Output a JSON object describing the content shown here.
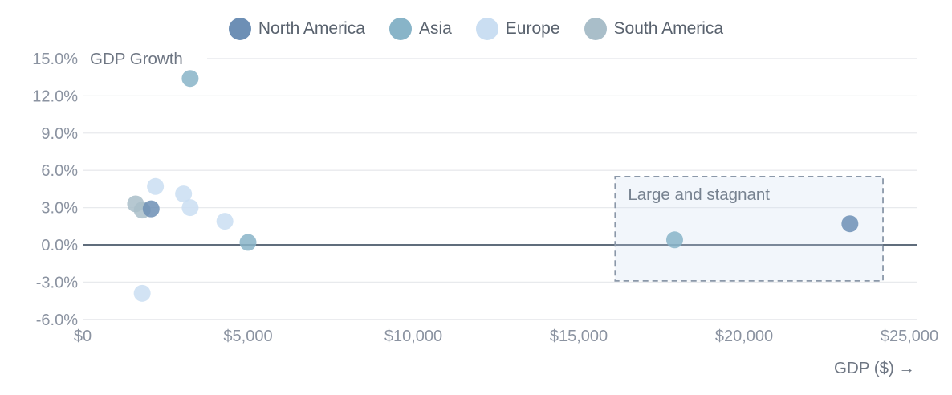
{
  "legend": {
    "items": [
      {
        "label": "North America",
        "color": "#6d8fb5"
      },
      {
        "label": "Asia",
        "color": "#88b4c8"
      },
      {
        "label": "Europe",
        "color": "#cadef2"
      },
      {
        "label": "South America",
        "color": "#a9bec9"
      }
    ]
  },
  "chart_data": {
    "type": "scatter",
    "title": "GDP Growth",
    "xlabel": "GDP ($) →",
    "x_axis": {
      "ticks": [
        {
          "value": 0,
          "label": "$0"
        },
        {
          "value": 5000,
          "label": "$5,000"
        },
        {
          "value": 10000,
          "label": "$10,000"
        },
        {
          "value": 15000,
          "label": "$15,000"
        },
        {
          "value": 20000,
          "label": "$20,000"
        },
        {
          "value": 25000,
          "label": "$25,000"
        }
      ]
    },
    "y_axis": {
      "ticks": [
        {
          "value": 15,
          "label": "15.0%"
        },
        {
          "value": 12,
          "label": "12.0%"
        },
        {
          "value": 9,
          "label": "9.0%"
        },
        {
          "value": 6,
          "label": "6.0%"
        },
        {
          "value": 3,
          "label": "3.0%"
        },
        {
          "value": 0,
          "label": "0.0%"
        },
        {
          "value": -3,
          "label": "-3.0%"
        },
        {
          "value": -6,
          "label": "-6.0%"
        }
      ]
    },
    "xlim": [
      0,
      25500
    ],
    "ylim": [
      -6.5,
      15
    ],
    "grid": "horizontal",
    "legend_position": "top",
    "series": [
      {
        "name": "North America",
        "color": "#6d8fb5",
        "points": [
          {
            "gdp": 2070,
            "growth": 2.9
          },
          {
            "gdp": 23200,
            "growth": 1.7
          }
        ]
      },
      {
        "name": "Asia",
        "color": "#88b4c8",
        "points": [
          {
            "gdp": 3250,
            "growth": 13.4
          },
          {
            "gdp": 5000,
            "growth": 0.2
          },
          {
            "gdp": 17900,
            "growth": 0.4
          }
        ]
      },
      {
        "name": "Europe",
        "color": "#cadef2",
        "points": [
          {
            "gdp": 2200,
            "growth": 4.7
          },
          {
            "gdp": 3050,
            "growth": 4.1
          },
          {
            "gdp": 3250,
            "growth": 3.0
          },
          {
            "gdp": 4300,
            "growth": 1.9
          },
          {
            "gdp": 1800,
            "growth": -3.9
          }
        ]
      },
      {
        "name": "South America",
        "color": "#a9bec9",
        "points": [
          {
            "gdp": 1600,
            "growth": 3.3
          },
          {
            "gdp": 1800,
            "growth": 2.8
          }
        ]
      }
    ],
    "annotation": {
      "label": "Large and stagnant",
      "gdp_range": [
        16100,
        24200
      ],
      "growth_range": [
        -2.9,
        5.5
      ]
    }
  },
  "colors": {
    "background": "#ffffff",
    "gridline": "#e8eaed",
    "zero_line": "#606d7c",
    "tick_text": "#8b93a1",
    "axis_title_text": "#6e7683",
    "annotation_border": "#8b98a9",
    "annotation_fill": "rgba(205,220,238,0.25)",
    "annotation_text": "#778290"
  }
}
